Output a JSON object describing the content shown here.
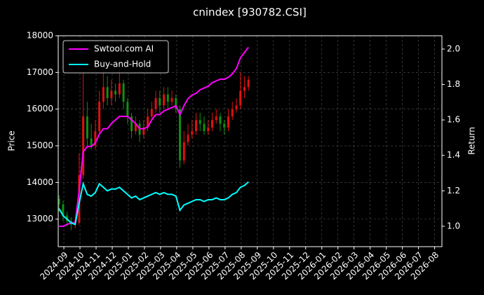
{
  "chart_data": {
    "type": "candlestick",
    "title": "cnindex [930782.CSI]",
    "ylabel": "Price",
    "y2label": "Return",
    "up_color": "#e01010",
    "down_color": "#109010",
    "grid": true,
    "legend": "upper left",
    "xlim": [
      -0.35,
      23.45
    ],
    "xticks": [
      {
        "value": 0,
        "label": "2024-09"
      },
      {
        "value": 1,
        "label": "2024-10"
      },
      {
        "value": 2,
        "label": "2024-11"
      },
      {
        "value": 3,
        "label": "2024-12"
      },
      {
        "value": 4,
        "label": "2025-01"
      },
      {
        "value": 5,
        "label": "2025-02"
      },
      {
        "value": 6,
        "label": "2025-03"
      },
      {
        "value": 7,
        "label": "2025-04"
      },
      {
        "value": 8,
        "label": "2025-05"
      },
      {
        "value": 9,
        "label": "2025-06"
      },
      {
        "value": 10,
        "label": "2025-07"
      },
      {
        "value": 11,
        "label": "2025-08"
      },
      {
        "value": 12,
        "label": "2025-09"
      },
      {
        "value": 13,
        "label": "2025-10"
      },
      {
        "value": 14,
        "label": "2025-11"
      },
      {
        "value": 15,
        "label": "2025-12"
      },
      {
        "value": 16,
        "label": "2026-01"
      },
      {
        "value": 17,
        "label": "2026-02"
      },
      {
        "value": 18,
        "label": "2026-03"
      },
      {
        "value": 19,
        "label": "2026-04"
      },
      {
        "value": 20,
        "label": "2026-05"
      },
      {
        "value": 21,
        "label": "2026-06"
      },
      {
        "value": 22,
        "label": "2026-07"
      },
      {
        "value": 23,
        "label": "2026-08"
      }
    ],
    "ylim": [
      12250,
      18000
    ],
    "yticks": [
      13000,
      14000,
      15000,
      16000,
      17000,
      18000
    ],
    "y2lim": [
      0.885,
      2.075
    ],
    "y2ticks": [
      {
        "value": 1,
        "label": "1.0"
      },
      1.2,
      1.4,
      1.6,
      1.8,
      {
        "value": 2,
        "label": "2.0"
      }
    ],
    "x": [
      -0.3,
      -0.05,
      0.2,
      0.45,
      0.7,
      0.95,
      1.2,
      1.45,
      1.7,
      1.95,
      2.2,
      2.45,
      2.7,
      2.95,
      3.2,
      3.45,
      3.7,
      3.95,
      4.2,
      4.45,
      4.7,
      4.95,
      5.2,
      5.45,
      5.7,
      5.95,
      6.2,
      6.45,
      6.7,
      6.95,
      7.2,
      7.45,
      7.7,
      7.95,
      8.2,
      8.45,
      8.7,
      8.95,
      9.2,
      9.45,
      9.7,
      9.95,
      10.2,
      10.45,
      10.7,
      10.95,
      11.2,
      11.45
    ],
    "open": [
      13550,
      13400,
      13100,
      12950,
      12850,
      12900,
      14200,
      15800,
      15200,
      15000,
      15400,
      16200,
      16600,
      16300,
      16500,
      16400,
      16700,
      16200,
      15800,
      15400,
      15600,
      15300,
      15500,
      15800,
      16000,
      16300,
      16100,
      16400,
      16200,
      16300,
      16000,
      14600,
      15100,
      15300,
      15400,
      15700,
      15600,
      15400,
      15500,
      15700,
      15800,
      15600,
      15500,
      15800,
      16000,
      16100,
      16500,
      16600
    ],
    "high": [
      13650,
      13500,
      13200,
      13050,
      13000,
      14800,
      17000,
      16200,
      15600,
      15700,
      16500,
      17100,
      16900,
      16800,
      16700,
      17100,
      16800,
      16300,
      15900,
      15800,
      15700,
      15700,
      16000,
      16200,
      16500,
      16500,
      16600,
      16600,
      16500,
      16400,
      16100,
      15400,
      15600,
      15700,
      15900,
      15900,
      15800,
      15700,
      15900,
      16000,
      15900,
      15700,
      16000,
      16200,
      16300,
      17000,
      16900,
      16900
    ],
    "low": [
      13200,
      12950,
      12800,
      12700,
      12750,
      12850,
      14100,
      15000,
      14900,
      14900,
      15300,
      16000,
      16100,
      16100,
      16200,
      16300,
      16000,
      15600,
      15200,
      15300,
      15100,
      15200,
      15400,
      15700,
      15900,
      15900,
      16000,
      16000,
      16100,
      15900,
      14400,
      14500,
      15000,
      15200,
      15300,
      15400,
      15300,
      15300,
      15400,
      15600,
      15400,
      15300,
      15400,
      15700,
      15900,
      16000,
      16300,
      16500
    ],
    "close": [
      13400,
      13100,
      12950,
      12850,
      12900,
      14200,
      15800,
      15200,
      15000,
      15400,
      16200,
      16600,
      16300,
      16500,
      16400,
      16700,
      16200,
      15800,
      15400,
      15600,
      15300,
      15500,
      15800,
      16000,
      16300,
      16100,
      16400,
      16200,
      16300,
      16000,
      14600,
      15100,
      15300,
      15400,
      15700,
      15600,
      15400,
      15500,
      15700,
      15800,
      15600,
      15500,
      15800,
      16000,
      16100,
      16500,
      16600,
      16800
    ],
    "series": [
      {
        "name": "Swtool.com AI",
        "color": "#ff00ff",
        "axis": "y2",
        "values": [
          1.0,
          1.0,
          1.01,
          1.02,
          1.02,
          1.2,
          1.42,
          1.45,
          1.45,
          1.47,
          1.52,
          1.55,
          1.55,
          1.58,
          1.6,
          1.62,
          1.62,
          1.62,
          1.6,
          1.58,
          1.55,
          1.55,
          1.56,
          1.6,
          1.63,
          1.63,
          1.65,
          1.66,
          1.67,
          1.68,
          1.63,
          1.68,
          1.72,
          1.74,
          1.75,
          1.77,
          1.78,
          1.79,
          1.81,
          1.82,
          1.83,
          1.83,
          1.84,
          1.86,
          1.89,
          1.95,
          1.98,
          2.01
        ]
      },
      {
        "name": "Buy-and-Hold",
        "color": "#00ffff",
        "axis": "y2",
        "values": [
          1.1,
          1.06,
          1.04,
          1.02,
          1.01,
          1.13,
          1.24,
          1.18,
          1.17,
          1.19,
          1.24,
          1.22,
          1.2,
          1.21,
          1.21,
          1.22,
          1.2,
          1.18,
          1.16,
          1.17,
          1.15,
          1.16,
          1.17,
          1.18,
          1.19,
          1.18,
          1.19,
          1.18,
          1.18,
          1.17,
          1.09,
          1.12,
          1.13,
          1.14,
          1.15,
          1.15,
          1.14,
          1.15,
          1.15,
          1.16,
          1.15,
          1.15,
          1.16,
          1.18,
          1.19,
          1.22,
          1.23,
          1.25
        ]
      }
    ]
  }
}
